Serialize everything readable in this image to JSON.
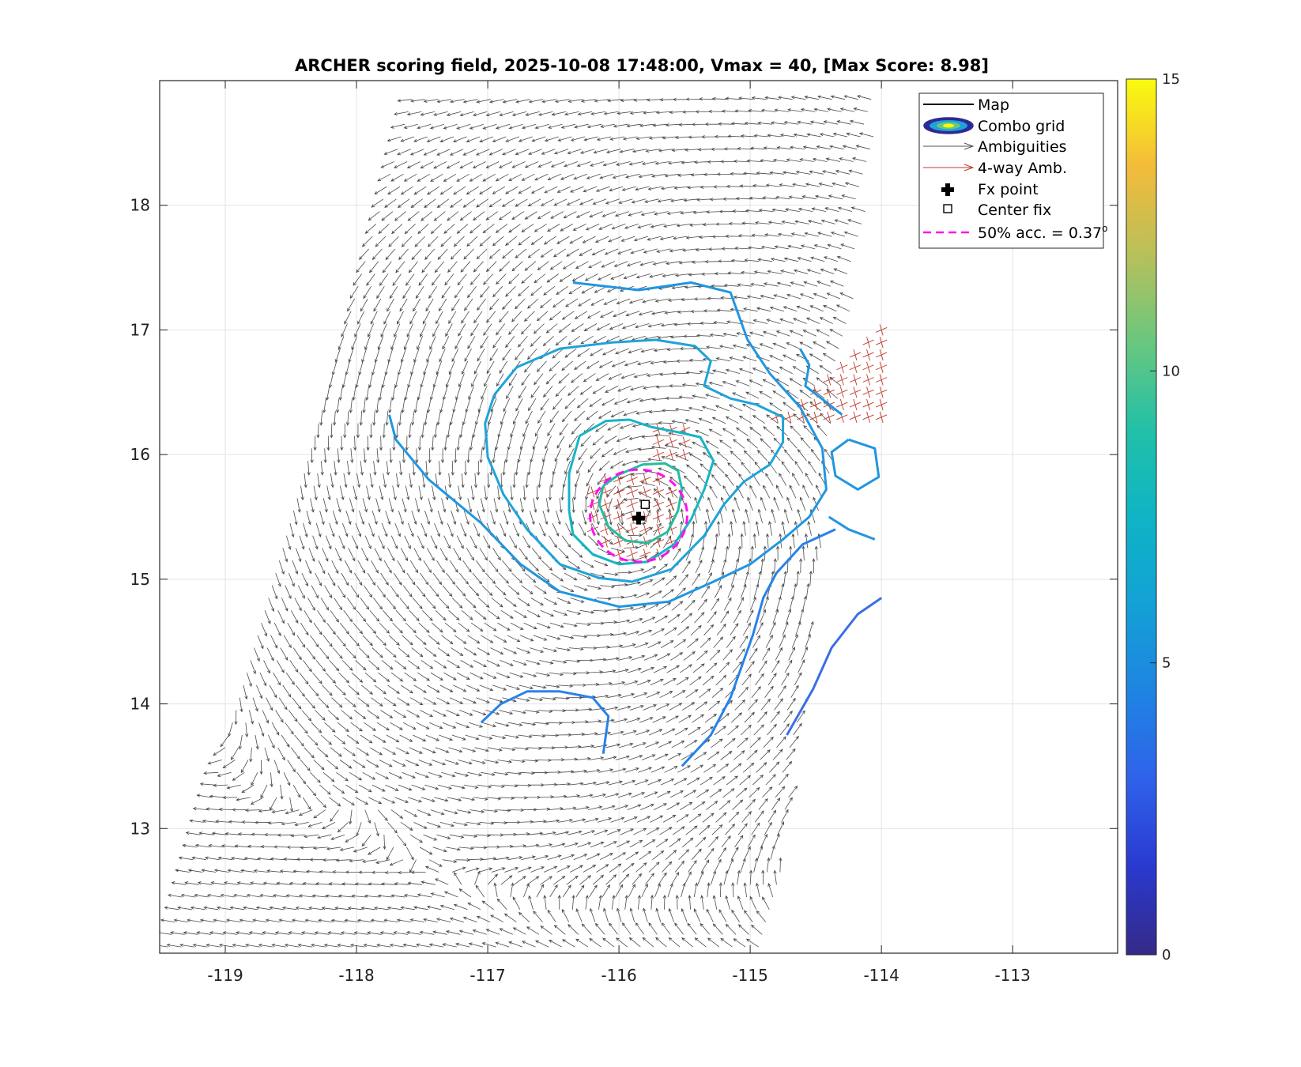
{
  "chart_data": {
    "type": "contour",
    "title": "ARCHER scoring field, 2025-10-08 17:48:00, Vmax = 40, [Max Score: 8.98]",
    "xlim": [
      -119.5,
      -112.2
    ],
    "ylim": [
      12,
      19
    ],
    "xticks": [
      -119,
      -118,
      -117,
      -116,
      -115,
      -114,
      -113
    ],
    "xtick_labels": [
      "-119",
      "-118",
      "-117",
      "-116",
      "-115",
      "-114",
      "-113"
    ],
    "yticks": [
      13,
      14,
      15,
      16,
      17,
      18
    ],
    "ytick_labels": [
      "13",
      "14",
      "15",
      "16",
      "17",
      "18"
    ],
    "grid": true,
    "colorbar": {
      "min": 0,
      "max": 15,
      "ticks": [
        "0",
        "5",
        "10",
        "15"
      ],
      "colormap": "parula"
    },
    "center_fix": {
      "lon": -115.8,
      "lat": 15.6
    },
    "fx_point": {
      "lon": -115.85,
      "lat": 15.49
    },
    "acc50_radius_deg": 0.37,
    "storm_center": {
      "lon": -115.88,
      "lat": 15.52
    },
    "swath": {
      "lon_bl": -119.5,
      "lon_br": -114.85,
      "lon_tl": -117.6,
      "lon_tr": -114.0,
      "lat_bottom": 12.0,
      "lat_top": 18.95
    },
    "contours": [
      {
        "level": 8.2,
        "color": "#27bba0",
        "points": [
          [
            -116.12,
            15.75
          ],
          [
            -116.0,
            15.84
          ],
          [
            -115.82,
            15.92
          ],
          [
            -115.65,
            15.93
          ],
          [
            -115.55,
            15.87
          ],
          [
            -115.52,
            15.72
          ],
          [
            -115.55,
            15.55
          ],
          [
            -115.63,
            15.38
          ],
          [
            -115.78,
            15.29
          ],
          [
            -115.95,
            15.31
          ],
          [
            -116.08,
            15.42
          ],
          [
            -116.15,
            15.6
          ],
          [
            -116.12,
            15.75
          ]
        ]
      },
      {
        "level": 7.2,
        "color": "#16b4c4",
        "points": [
          [
            -116.38,
            15.55
          ],
          [
            -116.38,
            15.85
          ],
          [
            -116.3,
            16.15
          ],
          [
            -116.1,
            16.27
          ],
          [
            -115.92,
            16.28
          ],
          [
            -115.75,
            16.22
          ],
          [
            -115.55,
            16.18
          ],
          [
            -115.38,
            16.14
          ],
          [
            -115.28,
            15.95
          ],
          [
            -115.35,
            15.72
          ],
          [
            -115.45,
            15.48
          ],
          [
            -115.58,
            15.28
          ],
          [
            -115.78,
            15.14
          ],
          [
            -116.0,
            15.12
          ],
          [
            -116.2,
            15.2
          ],
          [
            -116.35,
            15.36
          ],
          [
            -116.38,
            15.55
          ]
        ]
      },
      {
        "level": 6.0,
        "color": "#1fa3d8",
        "points": [
          [
            -116.95,
            16.48
          ],
          [
            -116.78,
            16.7
          ],
          [
            -116.45,
            16.85
          ],
          [
            -116.05,
            16.9
          ],
          [
            -115.72,
            16.92
          ],
          [
            -115.42,
            16.87
          ],
          [
            -115.3,
            16.75
          ],
          [
            -115.35,
            16.55
          ],
          [
            -115.15,
            16.45
          ],
          [
            -114.95,
            16.4
          ],
          [
            -114.75,
            16.3
          ],
          [
            -114.75,
            16.1
          ],
          [
            -114.85,
            15.92
          ],
          [
            -115.05,
            15.78
          ],
          [
            -115.2,
            15.6
          ],
          [
            -115.35,
            15.35
          ],
          [
            -115.6,
            15.08
          ],
          [
            -115.9,
            14.98
          ],
          [
            -116.15,
            15.01
          ],
          [
            -116.45,
            15.12
          ],
          [
            -116.7,
            15.4
          ],
          [
            -116.88,
            15.68
          ],
          [
            -117.0,
            15.98
          ],
          [
            -117.02,
            16.25
          ],
          [
            -116.95,
            16.48
          ]
        ]
      },
      {
        "level": 5.2,
        "color": "#2196e0",
        "points": [
          [
            -117.75,
            16.32
          ],
          [
            -117.7,
            16.12
          ],
          [
            -117.45,
            15.8
          ],
          [
            -117.05,
            15.45
          ],
          [
            -116.75,
            15.12
          ],
          [
            -116.45,
            14.9
          ],
          [
            -116.0,
            14.78
          ],
          [
            -115.62,
            14.82
          ],
          [
            -115.28,
            14.98
          ],
          [
            -115.0,
            15.12
          ],
          [
            -114.75,
            15.32
          ],
          [
            -114.55,
            15.5
          ],
          [
            -114.42,
            15.72
          ],
          [
            -114.45,
            16.05
          ],
          [
            -114.62,
            16.38
          ],
          [
            -114.85,
            16.65
          ],
          [
            -115.02,
            16.92
          ],
          [
            -115.15,
            17.3
          ],
          [
            -115.45,
            17.38
          ],
          [
            -115.85,
            17.32
          ],
          [
            -116.35,
            17.38
          ]
        ]
      },
      {
        "level": 5.0,
        "color": "#2196e0",
        "points": [
          [
            -114.62,
            16.85
          ],
          [
            -114.55,
            16.72
          ],
          [
            -114.58,
            16.55
          ],
          [
            -114.42,
            16.42
          ],
          [
            -114.3,
            16.32
          ]
        ]
      },
      {
        "level": 5.0,
        "color": "#2196e0",
        "points": [
          [
            -114.25,
            16.12
          ],
          [
            -114.05,
            16.05
          ],
          [
            -114.02,
            15.82
          ],
          [
            -114.18,
            15.72
          ],
          [
            -114.35,
            15.83
          ],
          [
            -114.38,
            16.02
          ],
          [
            -114.25,
            16.12
          ]
        ]
      },
      {
        "level": 5.0,
        "color": "#2196e0",
        "points": [
          [
            -114.4,
            15.5
          ],
          [
            -114.25,
            15.4
          ],
          [
            -114.05,
            15.32
          ]
        ]
      },
      {
        "level": 4.7,
        "color": "#2882e8",
        "points": [
          [
            -115.52,
            13.5
          ],
          [
            -115.3,
            13.75
          ],
          [
            -115.15,
            14.05
          ],
          [
            -114.98,
            14.55
          ],
          [
            -114.9,
            14.85
          ],
          [
            -114.8,
            15.05
          ],
          [
            -114.6,
            15.28
          ],
          [
            -114.35,
            15.4
          ]
        ]
      },
      {
        "level": 4.5,
        "color": "#2882e8",
        "points": [
          [
            -116.12,
            13.6
          ],
          [
            -116.08,
            13.9
          ],
          [
            -116.2,
            14.05
          ],
          [
            -116.45,
            14.1
          ],
          [
            -116.7,
            14.1
          ],
          [
            -116.9,
            14.0
          ],
          [
            -117.05,
            13.85
          ]
        ]
      },
      {
        "level": 4.0,
        "color": "#3a6fe5",
        "points": [
          [
            -114.72,
            13.75
          ],
          [
            -114.52,
            14.12
          ],
          [
            -114.38,
            14.45
          ],
          [
            -114.18,
            14.72
          ],
          [
            -114.0,
            14.85
          ]
        ]
      }
    ],
    "legend": {
      "position": "top-right",
      "entries": [
        "Map",
        "Combo grid",
        "Ambiguities",
        "4-way Amb.",
        "Fx point",
        "Center fix",
        "50% acc. = 0.37"
      ],
      "acc_superscript": "o"
    }
  }
}
